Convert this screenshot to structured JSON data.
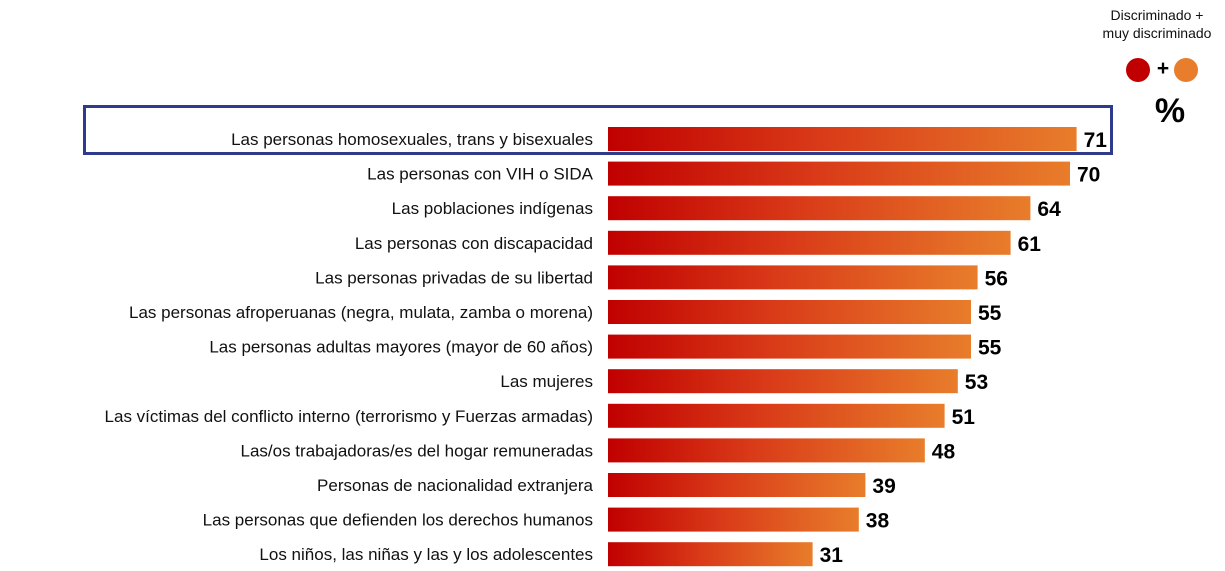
{
  "chart_data": {
    "type": "bar",
    "orientation": "horizontal",
    "unit": "%",
    "legend": {
      "lines": [
        "Discriminado +",
        "muy discriminado"
      ],
      "series": [
        {
          "name": "Discriminado",
          "color": "#c00000"
        },
        {
          "name": "muy discriminado",
          "color": "#e87d2b"
        }
      ]
    },
    "categories": [
      "Las personas homosexuales, trans y bisexuales",
      "Las personas con VIH o SIDA",
      "Las poblaciones indígenas",
      "Las personas con discapacidad",
      "Las personas privadas de su libertad",
      "Las personas afroperuanas (negra, mulata, zamba o morena)",
      "Las personas adultas mayores (mayor de 60 años)",
      "Las mujeres",
      "Las víctimas del conflicto interno (terrorismo y Fuerzas armadas)",
      "Las/os trabajadoras/es del hogar remuneradas",
      "Personas de nacionalidad extranjera",
      "Las personas que defienden los derechos humanos",
      "Los niños, las niñas y las y los adolescentes"
    ],
    "values": [
      71,
      70,
      64,
      61,
      56,
      55,
      55,
      53,
      51,
      48,
      39,
      38,
      31
    ],
    "highlighted_category": "Las personas homosexuales, trans y bisexuales",
    "xlim": [
      0,
      100
    ],
    "grid": false,
    "legend_position": "top-right",
    "colors": {
      "bar_start": "#c00000",
      "bar_end": "#e87d2b",
      "highlight_border": "#2e3b8c"
    }
  }
}
